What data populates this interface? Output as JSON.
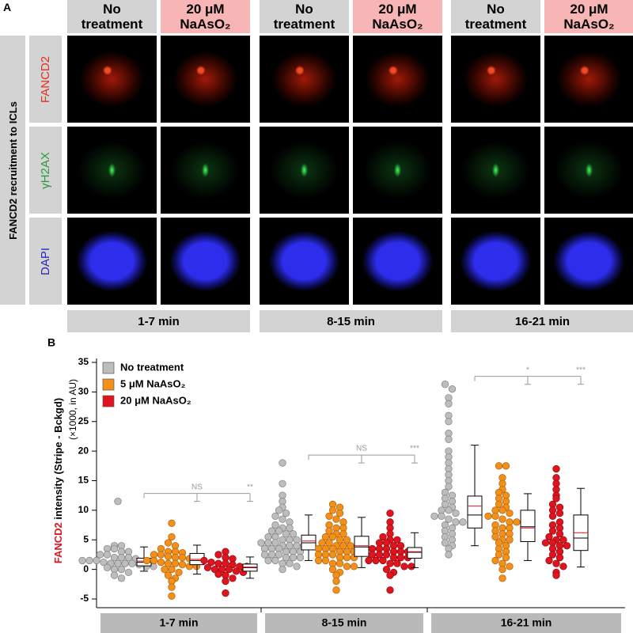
{
  "panel_a": {
    "letter": "A",
    "side_label": "FANCD2 recruitment to ICLs",
    "rows": [
      "FANCD2",
      "γH2AX",
      "DAPI"
    ],
    "groups": [
      {
        "time": "1-7 min",
        "conditions": [
          "No treatment",
          "20 μM NaAsO₂"
        ]
      },
      {
        "time": "8-15 min",
        "conditions": [
          "No treatment",
          "20 μM NaAsO₂"
        ]
      },
      {
        "time": "16-21 min",
        "conditions": [
          "No treatment",
          "20 μM NaAsO₂"
        ]
      }
    ]
  },
  "chart_data": {
    "type": "beeswarm-box",
    "letter": "B",
    "y_label_highlight": "FANCD2",
    "y_label": "intensity (Stripe - Bckgd)",
    "y_label_2": "(×1000, in AU)",
    "ylim": [
      -5,
      35
    ],
    "yticks": [
      -5,
      0,
      5,
      10,
      15,
      20,
      25,
      30,
      35
    ],
    "categories": [
      "1-7 min",
      "8-15 min",
      "16-21 min"
    ],
    "significance": [
      [
        "NS",
        "**"
      ],
      [
        "NS",
        "***"
      ],
      [
        "*",
        "***"
      ]
    ],
    "series": [
      {
        "name": "No treatment",
        "color": "#bdbdbd",
        "values": [
          [
            11.5,
            4,
            4,
            3.5,
            3.5,
            3,
            3,
            2.5,
            2.5,
            2,
            2,
            2,
            1.8,
            1.5,
            1.5,
            1.5,
            1.2,
            1,
            1,
            1,
            1,
            0.8,
            0.5,
            0.5,
            0.3,
            0,
            0,
            -0.5,
            -1,
            -1.5
          ],
          [
            18,
            14.5,
            12.5,
            11.5,
            10.5,
            10,
            9.5,
            9,
            8.5,
            8,
            7.5,
            7,
            7,
            6.5,
            6.5,
            6,
            6,
            5.5,
            5.5,
            5,
            5,
            5,
            4.5,
            4.5,
            4.5,
            4,
            4,
            4,
            4,
            3.5,
            3.5,
            3.5,
            3,
            3,
            3,
            2.5,
            2.5,
            2.5,
            2,
            2,
            2,
            1.5,
            1.5,
            1,
            1,
            0.5,
            0
          ],
          [
            31.3,
            30.5,
            29,
            28,
            26,
            25,
            23,
            22,
            20,
            19,
            18,
            17,
            16,
            15,
            14,
            13,
            12.5,
            12,
            11.5,
            11,
            10.5,
            10,
            10,
            9.5,
            9,
            9,
            8.5,
            8,
            8,
            7.5,
            7,
            6.5,
            6,
            5.5,
            5,
            4.5,
            4,
            3.5,
            2.5
          ]
        ],
        "boxes": [
          {
            "whislo": -0.3,
            "q1": 0.6,
            "median": 1.2,
            "mean": 1.4,
            "q3": 1.9,
            "whishi": 3.8
          },
          {
            "whislo": 1.5,
            "q1": 3.3,
            "median": 4.5,
            "mean": 4.8,
            "q3": 5.8,
            "whishi": 9.2
          },
          {
            "whislo": 4,
            "q1": 7,
            "median": 9.2,
            "mean": 10.7,
            "q3": 12.4,
            "whishi": 21
          }
        ]
      },
      {
        "name": "5 μM NaAsO₂",
        "color": "#f39019",
        "values": [
          [
            7.8,
            5.5,
            4.5,
            4,
            3.5,
            3,
            3,
            2.8,
            2.5,
            2.5,
            2.2,
            2,
            2,
            1.8,
            1.5,
            1.5,
            1.2,
            1,
            1,
            0.8,
            0.5,
            0.5,
            0,
            0,
            -0.5,
            -1,
            -1.5,
            -2,
            -3,
            -4.5
          ],
          [
            11,
            10.5,
            10,
            9.5,
            9,
            8.5,
            8,
            7.5,
            7,
            7,
            6.5,
            6,
            6,
            5.5,
            5.5,
            5,
            5,
            4.5,
            4.5,
            4,
            4,
            4,
            3.5,
            3.5,
            3.5,
            3,
            3,
            3,
            2.5,
            2.5,
            2.5,
            2,
            2,
            2,
            1.5,
            1.5,
            1,
            1,
            0.5,
            0.5,
            0,
            -0.5,
            -1,
            -2,
            -3.5
          ],
          [
            17.5,
            17.5,
            15.5,
            14.5,
            13.5,
            13,
            12.5,
            12,
            11.5,
            11,
            10.5,
            10,
            10,
            9.5,
            9,
            9,
            8.5,
            8,
            8,
            7.5,
            7,
            7,
            6.5,
            6,
            6,
            5.5,
            5,
            5,
            4.5,
            4,
            3.5,
            3,
            2.5,
            2,
            1.5,
            1,
            0.5,
            0,
            -1.5
          ]
        ],
        "boxes": [
          {
            "whislo": -0.8,
            "q1": 0.8,
            "median": 1.5,
            "mean": 1.7,
            "q3": 2.7,
            "whishi": 4.1
          },
          {
            "whislo": 0.3,
            "q1": 2.2,
            "median": 3.8,
            "mean": 4.0,
            "q3": 5.6,
            "whishi": 8.8
          },
          {
            "whislo": 1.5,
            "q1": 4.7,
            "median": 7.2,
            "mean": 7.0,
            "q3": 10,
            "whishi": 12.8
          }
        ]
      },
      {
        "name": "20 μM NaAsO₂",
        "color": "#e0141e",
        "values": [
          [
            3,
            2.5,
            2,
            1.8,
            1.5,
            1.2,
            1,
            1,
            0.8,
            0.5,
            0.5,
            0.3,
            0,
            0,
            0,
            -0.3,
            -0.5,
            -0.8,
            -1,
            -1.5,
            -2,
            -4
          ],
          [
            9.5,
            8,
            7,
            6,
            5.5,
            5,
            5,
            4.5,
            4.5,
            4,
            4,
            3.5,
            3.5,
            3.5,
            3,
            3,
            3,
            2.5,
            2.5,
            2.5,
            2,
            2,
            2,
            1.5,
            1.5,
            1.5,
            1,
            1,
            0.5,
            0.5,
            0,
            -0.5,
            -1,
            -3.5
          ],
          [
            17,
            15.5,
            14.5,
            13.5,
            12.5,
            12,
            11,
            10.5,
            10,
            9.5,
            9,
            8,
            7.5,
            7,
            6.5,
            6,
            5.5,
            5,
            5,
            4.5,
            4.5,
            4,
            4,
            3.5,
            3,
            2.5,
            2,
            1.5,
            1,
            0.5,
            -0.5,
            -1
          ]
        ],
        "boxes": [
          {
            "whislo": -1.5,
            "q1": -0.3,
            "median": 0.3,
            "mean": 0.4,
            "q3": 0.9,
            "whishi": 2.1
          },
          {
            "whislo": 0.3,
            "q1": 1.9,
            "median": 2.9,
            "mean": 3.0,
            "q3": 3.7,
            "whishi": 6.2
          },
          {
            "whislo": 0.4,
            "q1": 3.2,
            "median": 5.3,
            "mean": 6.2,
            "q3": 9.2,
            "whishi": 13.7
          }
        ]
      }
    ]
  }
}
